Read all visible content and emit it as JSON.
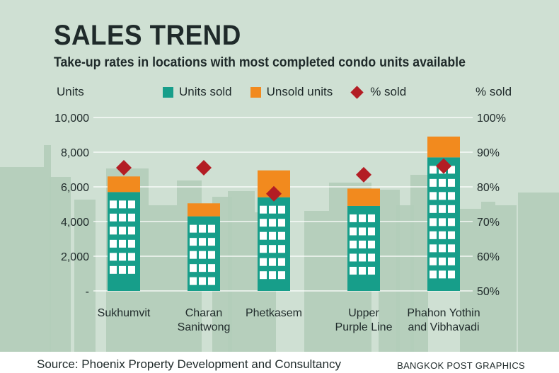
{
  "title": "SALES TREND",
  "subtitle": "Take-up rates in locations with most completed condo units available",
  "source": "Source: Phoenix Property Development and Consultancy",
  "credit": "BANGKOK POST GRAPHICS",
  "colors": {
    "background": "#cfe0d3",
    "skyline": "#b3cdb9",
    "sold": "#179e8a",
    "unsold": "#f28a1e",
    "percent": "#b31d24",
    "window": "#ffffff",
    "text": "#1f2a2a"
  },
  "chart_data": {
    "type": "bar",
    "stacked": true,
    "categories": [
      [
        "Sukhumvit"
      ],
      [
        "Charan",
        "Sanitwong"
      ],
      [
        "Phetkasem"
      ],
      [
        "Upper",
        "Purple Line"
      ],
      [
        "Phahon Yothin",
        "and Vibhavadi"
      ]
    ],
    "series": [
      {
        "name": "Units sold",
        "values": [
          5700,
          4300,
          5400,
          4900,
          7700
        ]
      },
      {
        "name": "Unsold units",
        "values": [
          900,
          750,
          1550,
          1000,
          1200
        ]
      },
      {
        "name": "% sold",
        "axis": "right",
        "marker": "diamond",
        "values": [
          85.5,
          85.5,
          78,
          83.5,
          86
        ]
      }
    ],
    "ylabel": "Units",
    "y2label": "% sold",
    "ylim": [
      0,
      10000
    ],
    "y2lim": [
      50,
      100
    ],
    "yticks": [
      "-",
      "2,000",
      "4,000",
      "6,000",
      "8,000",
      "10,000"
    ],
    "y2ticks": [
      "50%",
      "60%",
      "70%",
      "80%",
      "90%",
      "100%"
    ],
    "grid": true,
    "legend_position": "top"
  }
}
